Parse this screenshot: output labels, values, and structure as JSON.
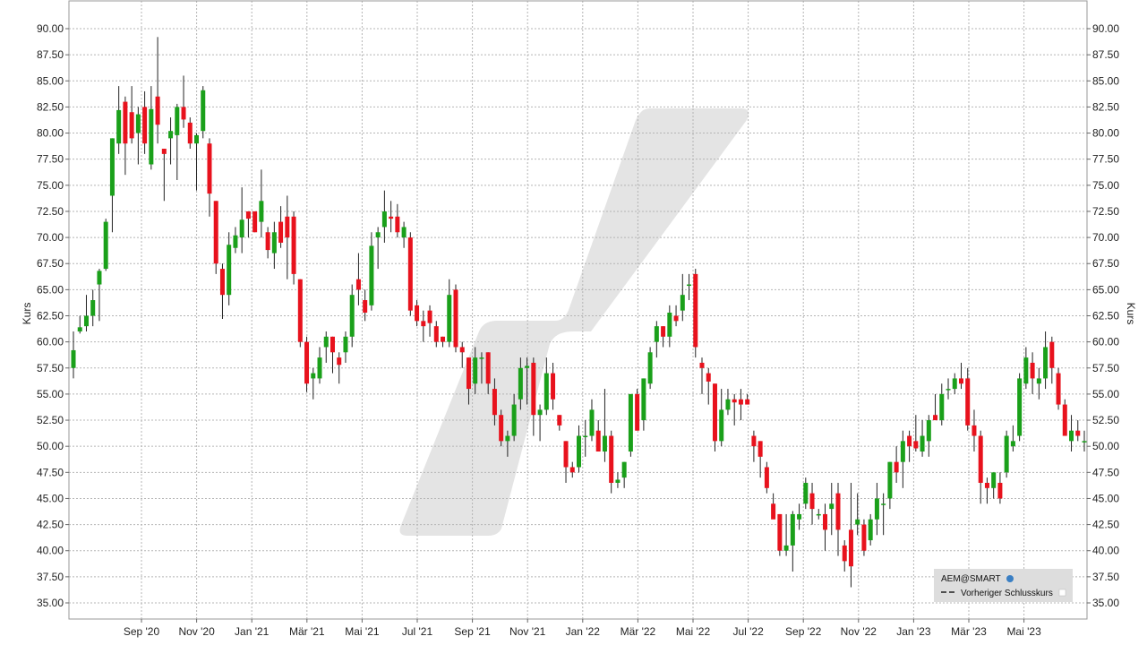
{
  "chart_data": {
    "type": "candlestick",
    "ylabel": "Kurs",
    "ylabel_right": "Kurs",
    "ylim": [
      33.5,
      92.5
    ],
    "grid": true,
    "yticks": [
      "90.00",
      "87.50",
      "85.00",
      "82.50",
      "80.00",
      "77.50",
      "75.00",
      "72.50",
      "70.00",
      "67.50",
      "65.00",
      "62.50",
      "60.00",
      "57.50",
      "55.00",
      "52.50",
      "50.00",
      "47.50",
      "45.00",
      "42.50",
      "40.00",
      "37.50",
      "35.00"
    ],
    "xticks": [
      "Sep '20",
      "Nov '20",
      "Jan '21",
      "Mär '21",
      "Mai '21",
      "Jul '21",
      "Sep '21",
      "Nov '21",
      "Jan '22",
      "Mär '22",
      "Mai '22",
      "Jul '22",
      "Sep '22",
      "Nov '22",
      "Jan '23",
      "Mär '23",
      "Mai '23"
    ],
    "up_color": "#1aa01a",
    "down_color": "#e8121d",
    "legend_position": "bottom-right",
    "legend": {
      "series_name": "AEM@SMART",
      "reference_line": "Vorheriger Schlusskurs"
    },
    "watermark_color": "#e4e4e4",
    "candles": [
      {
        "o": 57.5,
        "h": 61.0,
        "l": 56.5,
        "c": 59.2
      },
      {
        "o": 61.0,
        "h": 62.5,
        "l": 60.8,
        "c": 61.4
      },
      {
        "o": 61.5,
        "h": 64.5,
        "l": 61.0,
        "c": 62.5
      },
      {
        "o": 62.5,
        "h": 65.0,
        "l": 61.5,
        "c": 64.0
      },
      {
        "o": 65.5,
        "h": 67.0,
        "l": 62.0,
        "c": 66.8
      },
      {
        "o": 67.0,
        "h": 71.8,
        "l": 66.8,
        "c": 71.5
      },
      {
        "o": 74.0,
        "h": 79.5,
        "l": 70.5,
        "c": 79.5
      },
      {
        "o": 79.0,
        "h": 84.5,
        "l": 78.0,
        "c": 82.2
      },
      {
        "o": 83.0,
        "h": 83.5,
        "l": 76.0,
        "c": 79.0
      },
      {
        "o": 82.0,
        "h": 84.5,
        "l": 79.0,
        "c": 79.5
      },
      {
        "o": 80.0,
        "h": 82.5,
        "l": 77.0,
        "c": 81.8
      },
      {
        "o": 82.5,
        "h": 84.0,
        "l": 78.0,
        "c": 79.0
      },
      {
        "o": 77.0,
        "h": 84.5,
        "l": 76.5,
        "c": 82.3
      },
      {
        "o": 83.5,
        "h": 89.2,
        "l": 79.0,
        "c": 80.8
      },
      {
        "o": 78.5,
        "h": 78.5,
        "l": 73.5,
        "c": 78.0
      },
      {
        "o": 79.5,
        "h": 81.5,
        "l": 77.0,
        "c": 80.2
      },
      {
        "o": 79.8,
        "h": 82.8,
        "l": 75.5,
        "c": 82.5
      },
      {
        "o": 82.5,
        "h": 85.5,
        "l": 80.5,
        "c": 81.3
      },
      {
        "o": 81.0,
        "h": 81.5,
        "l": 78.5,
        "c": 79.0
      },
      {
        "o": 79.0,
        "h": 80.0,
        "l": 74.5,
        "c": 79.8
      },
      {
        "o": 80.2,
        "h": 84.5,
        "l": 79.5,
        "c": 84.1
      },
      {
        "o": 79.0,
        "h": 79.5,
        "l": 72.0,
        "c": 74.2
      },
      {
        "o": 73.5,
        "h": 73.5,
        "l": 66.5,
        "c": 67.5
      },
      {
        "o": 67.0,
        "h": 67.5,
        "l": 62.2,
        "c": 64.5
      },
      {
        "o": 64.5,
        "h": 70.5,
        "l": 63.5,
        "c": 69.3
      },
      {
        "o": 69.0,
        "h": 71.0,
        "l": 68.5,
        "c": 70.2
      },
      {
        "o": 70.0,
        "h": 74.8,
        "l": 68.5,
        "c": 71.7
      },
      {
        "o": 72.5,
        "h": 72.5,
        "l": 70.0,
        "c": 71.8
      },
      {
        "o": 72.5,
        "h": 72.5,
        "l": 70.5,
        "c": 70.5
      },
      {
        "o": 71.5,
        "h": 76.5,
        "l": 70.0,
        "c": 73.5
      },
      {
        "o": 70.5,
        "h": 71.0,
        "l": 68.0,
        "c": 68.8
      },
      {
        "o": 68.5,
        "h": 71.5,
        "l": 67.0,
        "c": 70.5
      },
      {
        "o": 71.5,
        "h": 73.0,
        "l": 69.0,
        "c": 69.5
      },
      {
        "o": 72.0,
        "h": 74.0,
        "l": 66.0,
        "c": 70.0
      },
      {
        "o": 72.0,
        "h": 72.5,
        "l": 65.5,
        "c": 66.5
      },
      {
        "o": 66.0,
        "h": 66.0,
        "l": 59.5,
        "c": 60.0
      },
      {
        "o": 60.0,
        "h": 60.5,
        "l": 55.2,
        "c": 56.0
      },
      {
        "o": 56.5,
        "h": 57.5,
        "l": 54.5,
        "c": 57.0
      },
      {
        "o": 56.5,
        "h": 59.5,
        "l": 56.0,
        "c": 58.5
      },
      {
        "o": 59.5,
        "h": 61.0,
        "l": 58.0,
        "c": 60.5
      },
      {
        "o": 60.5,
        "h": 60.5,
        "l": 57.0,
        "c": 59.0
      },
      {
        "o": 58.5,
        "h": 59.0,
        "l": 56.0,
        "c": 57.8
      },
      {
        "o": 59.0,
        "h": 61.0,
        "l": 58.0,
        "c": 60.5
      },
      {
        "o": 60.5,
        "h": 65.5,
        "l": 59.5,
        "c": 64.5
      },
      {
        "o": 66.0,
        "h": 68.5,
        "l": 63.5,
        "c": 65.0
      },
      {
        "o": 64.0,
        "h": 65.0,
        "l": 62.0,
        "c": 62.8
      },
      {
        "o": 63.5,
        "h": 70.5,
        "l": 63.0,
        "c": 69.2
      },
      {
        "o": 70.0,
        "h": 71.0,
        "l": 67.0,
        "c": 70.5
      },
      {
        "o": 71.0,
        "h": 74.5,
        "l": 69.5,
        "c": 72.5
      },
      {
        "o": 72.0,
        "h": 73.5,
        "l": 70.5,
        "c": 71.8
      },
      {
        "o": 72.0,
        "h": 73.2,
        "l": 70.0,
        "c": 70.5
      },
      {
        "o": 70.0,
        "h": 71.5,
        "l": 69.0,
        "c": 71.0
      },
      {
        "o": 70.0,
        "h": 70.5,
        "l": 62.5,
        "c": 63.0
      },
      {
        "o": 63.5,
        "h": 64.0,
        "l": 61.5,
        "c": 62.0
      },
      {
        "o": 62.0,
        "h": 63.0,
        "l": 60.0,
        "c": 61.5
      },
      {
        "o": 63.0,
        "h": 63.5,
        "l": 60.5,
        "c": 61.8
      },
      {
        "o": 61.5,
        "h": 62.0,
        "l": 59.5,
        "c": 60.0
      },
      {
        "o": 60.5,
        "h": 60.5,
        "l": 59.5,
        "c": 60.0
      },
      {
        "o": 60.0,
        "h": 66.0,
        "l": 59.5,
        "c": 64.5
      },
      {
        "o": 65.0,
        "h": 65.5,
        "l": 59.0,
        "c": 59.5
      },
      {
        "o": 59.5,
        "h": 60.0,
        "l": 57.5,
        "c": 59.0
      },
      {
        "o": 58.5,
        "h": 58.5,
        "l": 54.0,
        "c": 55.5
      },
      {
        "o": 56.0,
        "h": 59.5,
        "l": 55.0,
        "c": 58.5
      },
      {
        "o": 58.5,
        "h": 59.0,
        "l": 56.0,
        "c": 58.5
      },
      {
        "o": 59.0,
        "h": 59.0,
        "l": 55.0,
        "c": 56.0
      },
      {
        "o": 55.5,
        "h": 56.5,
        "l": 52.0,
        "c": 53.0
      },
      {
        "o": 53.0,
        "h": 53.5,
        "l": 50.0,
        "c": 50.5
      },
      {
        "o": 50.5,
        "h": 51.5,
        "l": 49.0,
        "c": 51.0
      },
      {
        "o": 51.0,
        "h": 55.0,
        "l": 50.5,
        "c": 54.0
      },
      {
        "o": 54.5,
        "h": 58.5,
        "l": 53.5,
        "c": 57.5
      },
      {
        "o": 57.5,
        "h": 58.5,
        "l": 54.0,
        "c": 57.7
      },
      {
        "o": 58.0,
        "h": 58.5,
        "l": 51.0,
        "c": 53.0
      },
      {
        "o": 53.0,
        "h": 54.0,
        "l": 50.5,
        "c": 53.5
      },
      {
        "o": 53.5,
        "h": 58.5,
        "l": 53.0,
        "c": 57.0
      },
      {
        "o": 57.0,
        "h": 58.0,
        "l": 53.5,
        "c": 54.5
      },
      {
        "o": 53.0,
        "h": 53.0,
        "l": 51.5,
        "c": 52.0
      },
      {
        "o": 50.5,
        "h": 50.5,
        "l": 46.5,
        "c": 48.0
      },
      {
        "o": 48.0,
        "h": 48.5,
        "l": 47.0,
        "c": 47.5
      },
      {
        "o": 48.0,
        "h": 52.0,
        "l": 47.5,
        "c": 51.0
      },
      {
        "o": 51.0,
        "h": 52.5,
        "l": 49.0,
        "c": 51.0
      },
      {
        "o": 51.0,
        "h": 54.5,
        "l": 50.5,
        "c": 53.5
      },
      {
        "o": 51.5,
        "h": 52.5,
        "l": 49.5,
        "c": 49.5
      },
      {
        "o": 49.5,
        "h": 55.5,
        "l": 48.5,
        "c": 51.0
      },
      {
        "o": 51.0,
        "h": 51.5,
        "l": 45.5,
        "c": 46.5
      },
      {
        "o": 46.5,
        "h": 47.5,
        "l": 46.0,
        "c": 46.8
      },
      {
        "o": 47.0,
        "h": 48.5,
        "l": 46.0,
        "c": 48.5
      },
      {
        "o": 49.5,
        "h": 55.0,
        "l": 49.0,
        "c": 55.0
      },
      {
        "o": 55.0,
        "h": 55.5,
        "l": 51.5,
        "c": 51.5
      },
      {
        "o": 52.5,
        "h": 56.5,
        "l": 51.5,
        "c": 56.5
      },
      {
        "o": 56.0,
        "h": 59.5,
        "l": 55.5,
        "c": 59.0
      },
      {
        "o": 60.0,
        "h": 62.0,
        "l": 58.5,
        "c": 61.5
      },
      {
        "o": 61.5,
        "h": 61.5,
        "l": 59.5,
        "c": 60.5
      },
      {
        "o": 60.5,
        "h": 63.5,
        "l": 59.5,
        "c": 62.8
      },
      {
        "o": 62.5,
        "h": 63.5,
        "l": 61.5,
        "c": 62.0
      },
      {
        "o": 63.0,
        "h": 66.5,
        "l": 62.0,
        "c": 64.5
      },
      {
        "o": 65.5,
        "h": 66.5,
        "l": 64.0,
        "c": 65.5
      },
      {
        "o": 66.5,
        "h": 67.0,
        "l": 58.5,
        "c": 59.5
      },
      {
        "o": 58.0,
        "h": 58.5,
        "l": 55.0,
        "c": 57.5
      },
      {
        "o": 57.0,
        "h": 57.5,
        "l": 54.0,
        "c": 56.2
      },
      {
        "o": 56.0,
        "h": 56.0,
        "l": 49.5,
        "c": 50.5
      },
      {
        "o": 50.5,
        "h": 55.5,
        "l": 50.0,
        "c": 53.5
      },
      {
        "o": 53.5,
        "h": 55.5,
        "l": 53.0,
        "c": 54.5
      },
      {
        "o": 54.5,
        "h": 55.0,
        "l": 52.0,
        "c": 54.2
      },
      {
        "o": 54.5,
        "h": 55.5,
        "l": 52.5,
        "c": 54.0
      },
      {
        "o": 54.5,
        "h": 55.0,
        "l": 54.0,
        "c": 54.0
      },
      {
        "o": 51.0,
        "h": 51.5,
        "l": 48.5,
        "c": 50.0
      },
      {
        "o": 50.5,
        "h": 50.5,
        "l": 47.0,
        "c": 49.0
      },
      {
        "o": 48.0,
        "h": 48.5,
        "l": 45.5,
        "c": 46.0
      },
      {
        "o": 44.5,
        "h": 45.5,
        "l": 43.5,
        "c": 43.0
      },
      {
        "o": 43.5,
        "h": 43.5,
        "l": 39.5,
        "c": 40.0
      },
      {
        "o": 40.0,
        "h": 43.5,
        "l": 39.5,
        "c": 40.5
      },
      {
        "o": 40.5,
        "h": 43.8,
        "l": 38.0,
        "c": 43.5
      },
      {
        "o": 43.0,
        "h": 44.5,
        "l": 42.0,
        "c": 43.5
      },
      {
        "o": 44.5,
        "h": 47.0,
        "l": 44.0,
        "c": 46.5
      },
      {
        "o": 45.5,
        "h": 46.5,
        "l": 42.5,
        "c": 44.0
      },
      {
        "o": 43.5,
        "h": 44.0,
        "l": 43.0,
        "c": 43.5
      },
      {
        "o": 43.5,
        "h": 44.5,
        "l": 40.0,
        "c": 42.0
      },
      {
        "o": 44.0,
        "h": 46.5,
        "l": 41.5,
        "c": 44.5
      },
      {
        "o": 45.5,
        "h": 46.5,
        "l": 39.5,
        "c": 42.0
      },
      {
        "o": 40.5,
        "h": 41.0,
        "l": 38.0,
        "c": 39.0
      },
      {
        "o": 42.0,
        "h": 46.5,
        "l": 36.5,
        "c": 38.5
      },
      {
        "o": 42.5,
        "h": 45.5,
        "l": 41.5,
        "c": 43.0
      },
      {
        "o": 42.5,
        "h": 43.0,
        "l": 39.5,
        "c": 40.0
      },
      {
        "o": 41.0,
        "h": 43.5,
        "l": 40.5,
        "c": 43.0
      },
      {
        "o": 43.0,
        "h": 46.5,
        "l": 41.5,
        "c": 45.0
      },
      {
        "o": 44.5,
        "h": 45.5,
        "l": 41.5,
        "c": 44.5
      },
      {
        "o": 45.0,
        "h": 48.5,
        "l": 44.0,
        "c": 48.5
      },
      {
        "o": 48.5,
        "h": 50.0,
        "l": 46.5,
        "c": 47.5
      },
      {
        "o": 48.5,
        "h": 51.5,
        "l": 46.0,
        "c": 50.5
      },
      {
        "o": 51.0,
        "h": 51.5,
        "l": 48.5,
        "c": 50.0
      },
      {
        "o": 50.5,
        "h": 53.0,
        "l": 49.5,
        "c": 49.8
      },
      {
        "o": 49.5,
        "h": 52.5,
        "l": 49.0,
        "c": 51.0
      },
      {
        "o": 50.5,
        "h": 53.0,
        "l": 49.0,
        "c": 52.5
      },
      {
        "o": 53.0,
        "h": 55.0,
        "l": 52.5,
        "c": 52.5
      },
      {
        "o": 52.5,
        "h": 56.0,
        "l": 52.0,
        "c": 55.0
      },
      {
        "o": 55.5,
        "h": 56.5,
        "l": 54.5,
        "c": 55.5
      },
      {
        "o": 55.5,
        "h": 57.0,
        "l": 55.0,
        "c": 56.5
      },
      {
        "o": 56.5,
        "h": 58.0,
        "l": 55.5,
        "c": 56.0
      },
      {
        "o": 56.5,
        "h": 57.5,
        "l": 51.5,
        "c": 52.0
      },
      {
        "o": 52.0,
        "h": 53.5,
        "l": 49.5,
        "c": 51.0
      },
      {
        "o": 51.0,
        "h": 51.5,
        "l": 44.5,
        "c": 46.5
      },
      {
        "o": 46.5,
        "h": 47.0,
        "l": 44.5,
        "c": 46.0
      },
      {
        "o": 46.0,
        "h": 47.5,
        "l": 45.0,
        "c": 47.5
      },
      {
        "o": 46.5,
        "h": 47.5,
        "l": 44.5,
        "c": 45.0
      },
      {
        "o": 47.5,
        "h": 51.5,
        "l": 47.0,
        "c": 51.0
      },
      {
        "o": 50.0,
        "h": 52.0,
        "l": 49.5,
        "c": 50.5
      },
      {
        "o": 51.0,
        "h": 57.0,
        "l": 50.5,
        "c": 56.5
      },
      {
        "o": 56.0,
        "h": 59.5,
        "l": 55.5,
        "c": 58.5
      },
      {
        "o": 58.0,
        "h": 59.0,
        "l": 55.0,
        "c": 56.5
      },
      {
        "o": 56.0,
        "h": 57.5,
        "l": 54.5,
        "c": 56.5
      },
      {
        "o": 56.5,
        "h": 61.0,
        "l": 55.5,
        "c": 59.5
      },
      {
        "o": 60.0,
        "h": 60.5,
        "l": 56.0,
        "c": 57.5
      },
      {
        "o": 57.0,
        "h": 57.5,
        "l": 53.5,
        "c": 54.0
      },
      {
        "o": 54.0,
        "h": 54.5,
        "l": 51.0,
        "c": 51.0
      },
      {
        "o": 50.5,
        "h": 53.0,
        "l": 49.5,
        "c": 51.5
      },
      {
        "o": 51.5,
        "h": 52.5,
        "l": 50.5,
        "c": 51.0
      },
      {
        "o": 50.5,
        "h": 51.5,
        "l": 49.5,
        "c": 50.5
      }
    ]
  }
}
